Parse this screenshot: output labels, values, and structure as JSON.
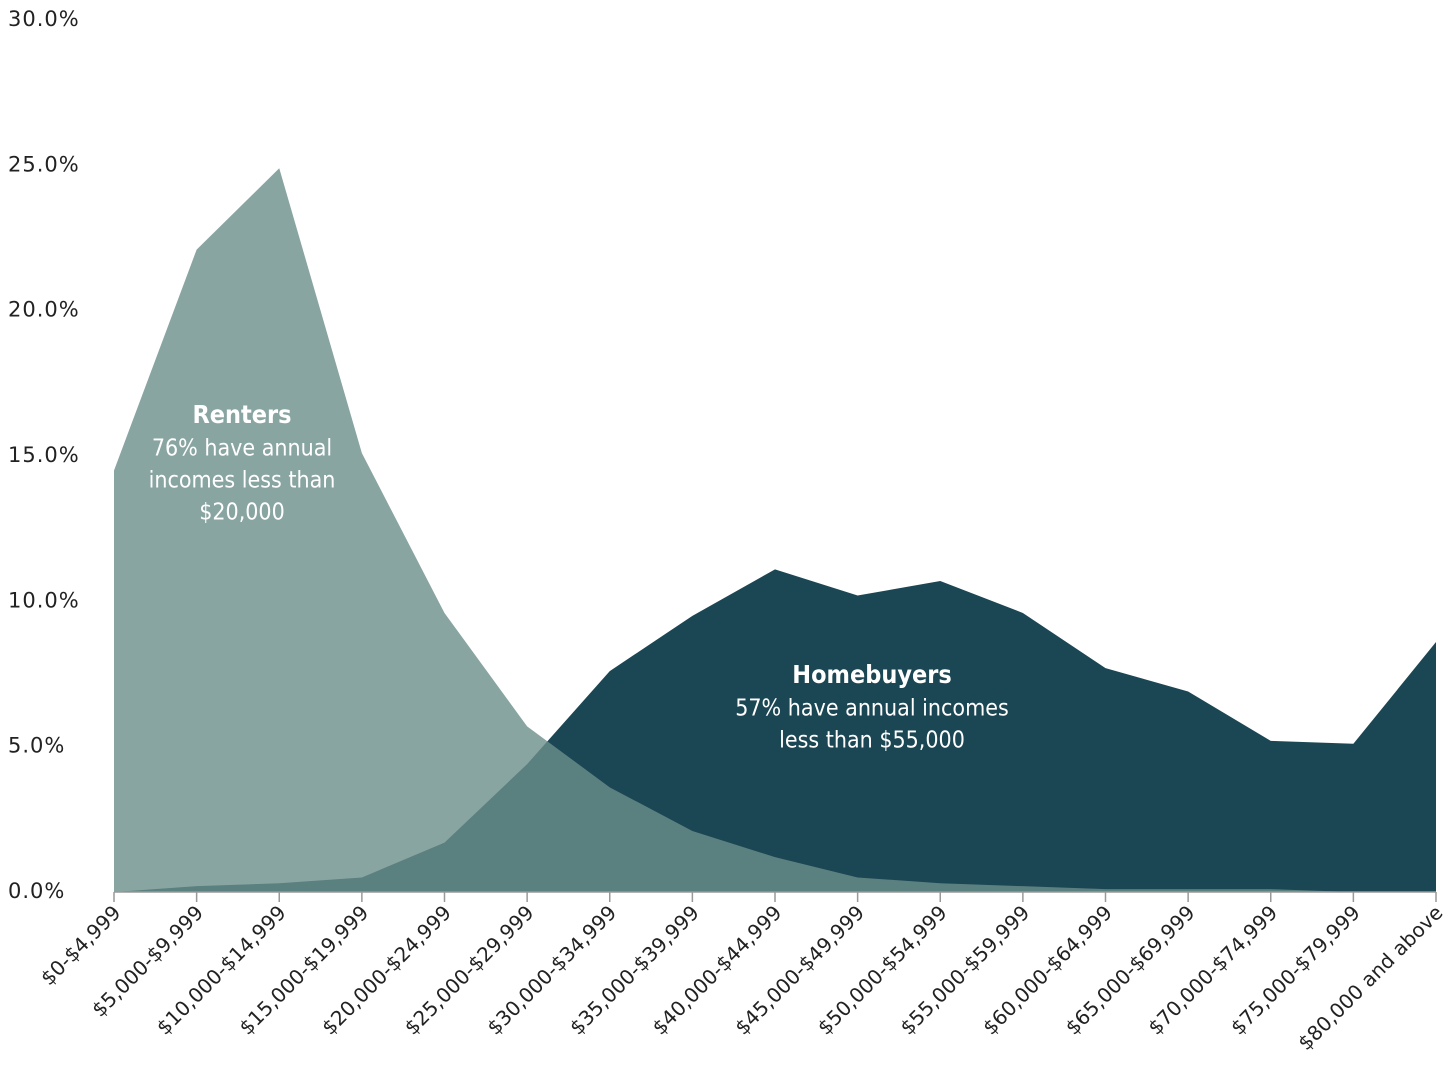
{
  "chart_data": {
    "type": "area",
    "categories": [
      "$0-$4,999",
      "$5,000-$9,999",
      "$10,000-$14,999",
      "$15,000-$19,999",
      "$20,000-$24,999",
      "$25,000-$29,999",
      "$30,000-$34,999",
      "$35,000-$39,999",
      "$40,000-$44,999",
      "$45,000-$49,999",
      "$50,000-$54,999",
      "$55,000-$59,999",
      "$60,000-$64,999",
      "$65,000-$69,999",
      "$70,000-$74,999",
      "$75,000-$79,999",
      "$80,000 and above"
    ],
    "series": [
      {
        "name": "Homebuyers",
        "color": "#1b4654",
        "values": [
          0.0,
          0.2,
          0.3,
          0.5,
          1.7,
          4.4,
          7.6,
          9.5,
          11.1,
          10.2,
          10.7,
          9.6,
          7.7,
          6.9,
          5.2,
          5.1,
          8.6
        ]
      },
      {
        "name": "Renters",
        "color": "#6b8e8b",
        "values": [
          14.5,
          22.1,
          24.9,
          15.1,
          9.6,
          5.7,
          3.6,
          2.1,
          1.2,
          0.5,
          0.3,
          0.2,
          0.1,
          0.1,
          0.1,
          0.0,
          0.0
        ]
      }
    ],
    "annotations": [
      {
        "title": "Renters",
        "lines": [
          "76% have annual",
          "incomes less than",
          "$20,000"
        ]
      },
      {
        "title": "Homebuyers",
        "lines": [
          "57% have annual incomes",
          "less than $55,000"
        ]
      }
    ],
    "ylim": [
      0,
      30
    ],
    "yticks": [
      {
        "value": 0,
        "label": "0.0%"
      },
      {
        "value": 5,
        "label": "5.0%"
      },
      {
        "value": 10,
        "label": "10.0%"
      },
      {
        "value": 15,
        "label": "15.0%"
      },
      {
        "value": 20,
        "label": "20.0%"
      },
      {
        "value": 25,
        "label": "25.0%"
      },
      {
        "value": 30,
        "label": "30.0%"
      }
    ]
  }
}
